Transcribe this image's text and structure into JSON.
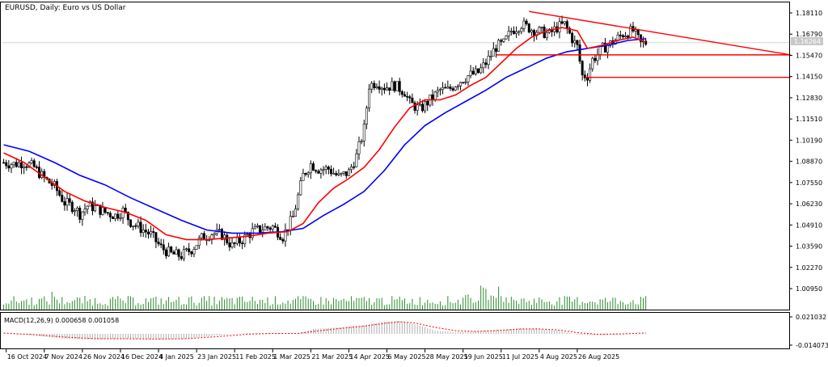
{
  "chart_data": {
    "type": "candlestick",
    "title": "EURUSD, Daily:  Euro vs US Dollar",
    "current_price": "1.16264",
    "y_ticks": [
      1.1811,
      1.1679,
      1.1547,
      1.1415,
      1.1283,
      1.1151,
      1.1019,
      1.0887,
      1.0755,
      1.0623,
      1.0491,
      1.0359,
      1.0227,
      1.0095
    ],
    "y_tick_labels": [
      "1.18110",
      "1.16790",
      "1.15470",
      "1.14150",
      "1.12830",
      "1.11510",
      "1.10190",
      "1.08870",
      "1.07550",
      "1.06230",
      "1.04910",
      "1.03590",
      "1.02270",
      "1.00950"
    ],
    "x_tick_labels": [
      "16 Oct 2024",
      "7 Nov 2024",
      "26 Nov 2024",
      "16 Dec 2024",
      "4 Jan 2025",
      "23 Jan 2025",
      "11 Feb 2025",
      "1 Mar 2025",
      "21 Mar 2025",
      "14 Apr 2025",
      "6 May 2025",
      "28 May 2025",
      "19 Jun 2025",
      "11 Jul 2025",
      "4 Aug 2025",
      "26 Aug 2025"
    ],
    "close_path": [
      [
        0,
        1.088
      ],
      [
        4,
        1.087
      ],
      [
        8,
        1.088
      ],
      [
        12,
        1.085
      ],
      [
        16,
        1.078
      ],
      [
        20,
        1.073
      ],
      [
        24,
        1.063
      ],
      [
        28,
        1.06
      ],
      [
        30,
        1.056
      ],
      [
        33,
        1.061
      ],
      [
        36,
        1.06
      ],
      [
        40,
        1.057
      ],
      [
        44,
        1.055
      ],
      [
        47,
        1.058
      ],
      [
        50,
        1.051
      ],
      [
        54,
        1.047
      ],
      [
        58,
        1.043
      ],
      [
        62,
        1.035
      ],
      [
        66,
        1.031
      ],
      [
        70,
        1.03
      ],
      [
        74,
        1.034
      ],
      [
        78,
        1.041
      ],
      [
        82,
        1.044
      ],
      [
        86,
        1.043
      ],
      [
        90,
        1.036
      ],
      [
        94,
        1.04
      ],
      [
        98,
        1.045
      ],
      [
        102,
        1.047
      ],
      [
        106,
        1.048
      ],
      [
        110,
        1.042
      ],
      [
        114,
        1.054
      ],
      [
        118,
        1.08
      ],
      [
        121,
        1.087
      ],
      [
        124,
        1.084
      ],
      [
        128,
        1.084
      ],
      [
        132,
        1.079
      ],
      [
        136,
        1.082
      ],
      [
        139,
        1.092
      ],
      [
        142,
        1.109
      ],
      [
        144,
        1.136
      ],
      [
        147,
        1.138
      ],
      [
        150,
        1.135
      ],
      [
        154,
        1.136
      ],
      [
        158,
        1.132
      ],
      [
        160,
        1.125
      ],
      [
        164,
        1.121
      ],
      [
        168,
        1.127
      ],
      [
        172,
        1.133
      ],
      [
        175,
        1.133
      ],
      [
        179,
        1.138
      ],
      [
        183,
        1.142
      ],
      [
        187,
        1.144
      ],
      [
        190,
        1.15
      ],
      [
        194,
        1.16
      ],
      [
        197,
        1.162
      ],
      [
        200,
        1.17
      ],
      [
        204,
        1.174
      ],
      [
        208,
        1.171
      ],
      [
        212,
        1.169
      ],
      [
        215,
        1.168
      ],
      [
        218,
        1.172
      ],
      [
        221,
        1.174
      ],
      [
        224,
        1.165
      ],
      [
        226,
        1.16
      ],
      [
        228,
        1.142
      ],
      [
        230,
        1.142
      ],
      [
        232,
        1.152
      ],
      [
        236,
        1.159
      ],
      [
        240,
        1.163
      ],
      [
        244,
        1.168
      ],
      [
        248,
        1.17
      ],
      [
        251,
        1.162
      ],
      [
        253,
        1.1626
      ]
    ],
    "ma_fast": [
      [
        0,
        1.094
      ],
      [
        8,
        1.088
      ],
      [
        16,
        1.079
      ],
      [
        24,
        1.07
      ],
      [
        32,
        1.064
      ],
      [
        40,
        1.06
      ],
      [
        48,
        1.057
      ],
      [
        56,
        1.052
      ],
      [
        64,
        1.043
      ],
      [
        72,
        1.04
      ],
      [
        80,
        1.04
      ],
      [
        88,
        1.041
      ],
      [
        96,
        1.042
      ],
      [
        104,
        1.044
      ],
      [
        112,
        1.045
      ],
      [
        118,
        1.05
      ],
      [
        124,
        1.063
      ],
      [
        130,
        1.072
      ],
      [
        136,
        1.078
      ],
      [
        142,
        1.085
      ],
      [
        148,
        1.096
      ],
      [
        154,
        1.11
      ],
      [
        160,
        1.122
      ],
      [
        166,
        1.127
      ],
      [
        172,
        1.127
      ],
      [
        178,
        1.13
      ],
      [
        184,
        1.136
      ],
      [
        190,
        1.141
      ],
      [
        196,
        1.15
      ],
      [
        202,
        1.159
      ],
      [
        208,
        1.166
      ],
      [
        214,
        1.17
      ],
      [
        220,
        1.172
      ],
      [
        226,
        1.17
      ],
      [
        230,
        1.159
      ],
      [
        236,
        1.161
      ],
      [
        242,
        1.164
      ],
      [
        248,
        1.166
      ],
      [
        253,
        1.163
      ]
    ],
    "ma_slow": [
      [
        0,
        1.099
      ],
      [
        10,
        1.095
      ],
      [
        20,
        1.088
      ],
      [
        30,
        1.08
      ],
      [
        40,
        1.074
      ],
      [
        50,
        1.066
      ],
      [
        60,
        1.059
      ],
      [
        70,
        1.052
      ],
      [
        80,
        1.046
      ],
      [
        90,
        1.044
      ],
      [
        100,
        1.044
      ],
      [
        110,
        1.045
      ],
      [
        118,
        1.047
      ],
      [
        126,
        1.055
      ],
      [
        134,
        1.062
      ],
      [
        142,
        1.07
      ],
      [
        150,
        1.083
      ],
      [
        158,
        1.099
      ],
      [
        166,
        1.111
      ],
      [
        174,
        1.119
      ],
      [
        182,
        1.126
      ],
      [
        190,
        1.133
      ],
      [
        198,
        1.141
      ],
      [
        206,
        1.147
      ],
      [
        214,
        1.153
      ],
      [
        222,
        1.157
      ],
      [
        230,
        1.159
      ],
      [
        238,
        1.161
      ],
      [
        246,
        1.164
      ],
      [
        253,
        1.165
      ]
    ],
    "resistance_trendline": {
      "from": [
        207,
        1.182
      ],
      "to": [
        310,
        1.155
      ]
    },
    "support_lines": [
      {
        "from": [
          194,
          1.155
        ],
        "to": [
          310,
          1.155
        ]
      },
      {
        "from": [
          229,
          1.141
        ],
        "to": [
          310,
          1.141
        ]
      }
    ],
    "macd_label": "MACD(12,26,9) 0.000658 0.001058",
    "macd_y_ticks": [
      0.021032,
      -0.014073
    ],
    "macd_y_tick_labels": [
      "0.021032",
      "-0.014073"
    ],
    "macd_hist": [
      [
        0,
        0.0
      ],
      [
        12,
        -0.002
      ],
      [
        24,
        -0.006
      ],
      [
        36,
        -0.007
      ],
      [
        48,
        -0.006
      ],
      [
        60,
        -0.007
      ],
      [
        72,
        -0.006
      ],
      [
        84,
        -0.002
      ],
      [
        96,
        0.001
      ],
      [
        106,
        0.001
      ],
      [
        116,
        0.0
      ],
      [
        122,
        0.006
      ],
      [
        132,
        0.008
      ],
      [
        142,
        0.011
      ],
      [
        150,
        0.015
      ],
      [
        156,
        0.016
      ],
      [
        162,
        0.012
      ],
      [
        170,
        0.004
      ],
      [
        178,
        0.002
      ],
      [
        186,
        0.003
      ],
      [
        196,
        0.005
      ],
      [
        204,
        0.007
      ],
      [
        210,
        0.006
      ],
      [
        218,
        0.004
      ],
      [
        226,
        -0.001
      ],
      [
        234,
        -0.002
      ],
      [
        244,
        -0.001
      ],
      [
        253,
        0.0007
      ]
    ],
    "macd_signal": [
      [
        0,
        0.001
      ],
      [
        12,
        -0.001
      ],
      [
        24,
        -0.004
      ],
      [
        36,
        -0.006
      ],
      [
        48,
        -0.006
      ],
      [
        60,
        -0.0065
      ],
      [
        72,
        -0.006
      ],
      [
        84,
        -0.0035
      ],
      [
        96,
        -0.0005
      ],
      [
        106,
        0.0005
      ],
      [
        116,
        0.0005
      ],
      [
        122,
        0.003
      ],
      [
        132,
        0.0065
      ],
      [
        142,
        0.0095
      ],
      [
        150,
        0.013
      ],
      [
        156,
        0.015
      ],
      [
        162,
        0.0135
      ],
      [
        170,
        0.008
      ],
      [
        178,
        0.004
      ],
      [
        186,
        0.003
      ],
      [
        196,
        0.0045
      ],
      [
        204,
        0.006
      ],
      [
        210,
        0.0062
      ],
      [
        218,
        0.005
      ],
      [
        226,
        0.0015
      ],
      [
        234,
        -0.0005
      ],
      [
        244,
        0.0
      ],
      [
        253,
        0.0011
      ]
    ],
    "colors": {
      "grid": "#d6d6d6",
      "frame": "#000000",
      "candle": "#000000",
      "ma_fast": "#ff0000",
      "ma_slow": "#0000ff",
      "lines": "#ff0000",
      "volume": "#2e8b2e",
      "macd_hist": "#b0b0b0",
      "macd_signal": "#ff0000"
    }
  }
}
